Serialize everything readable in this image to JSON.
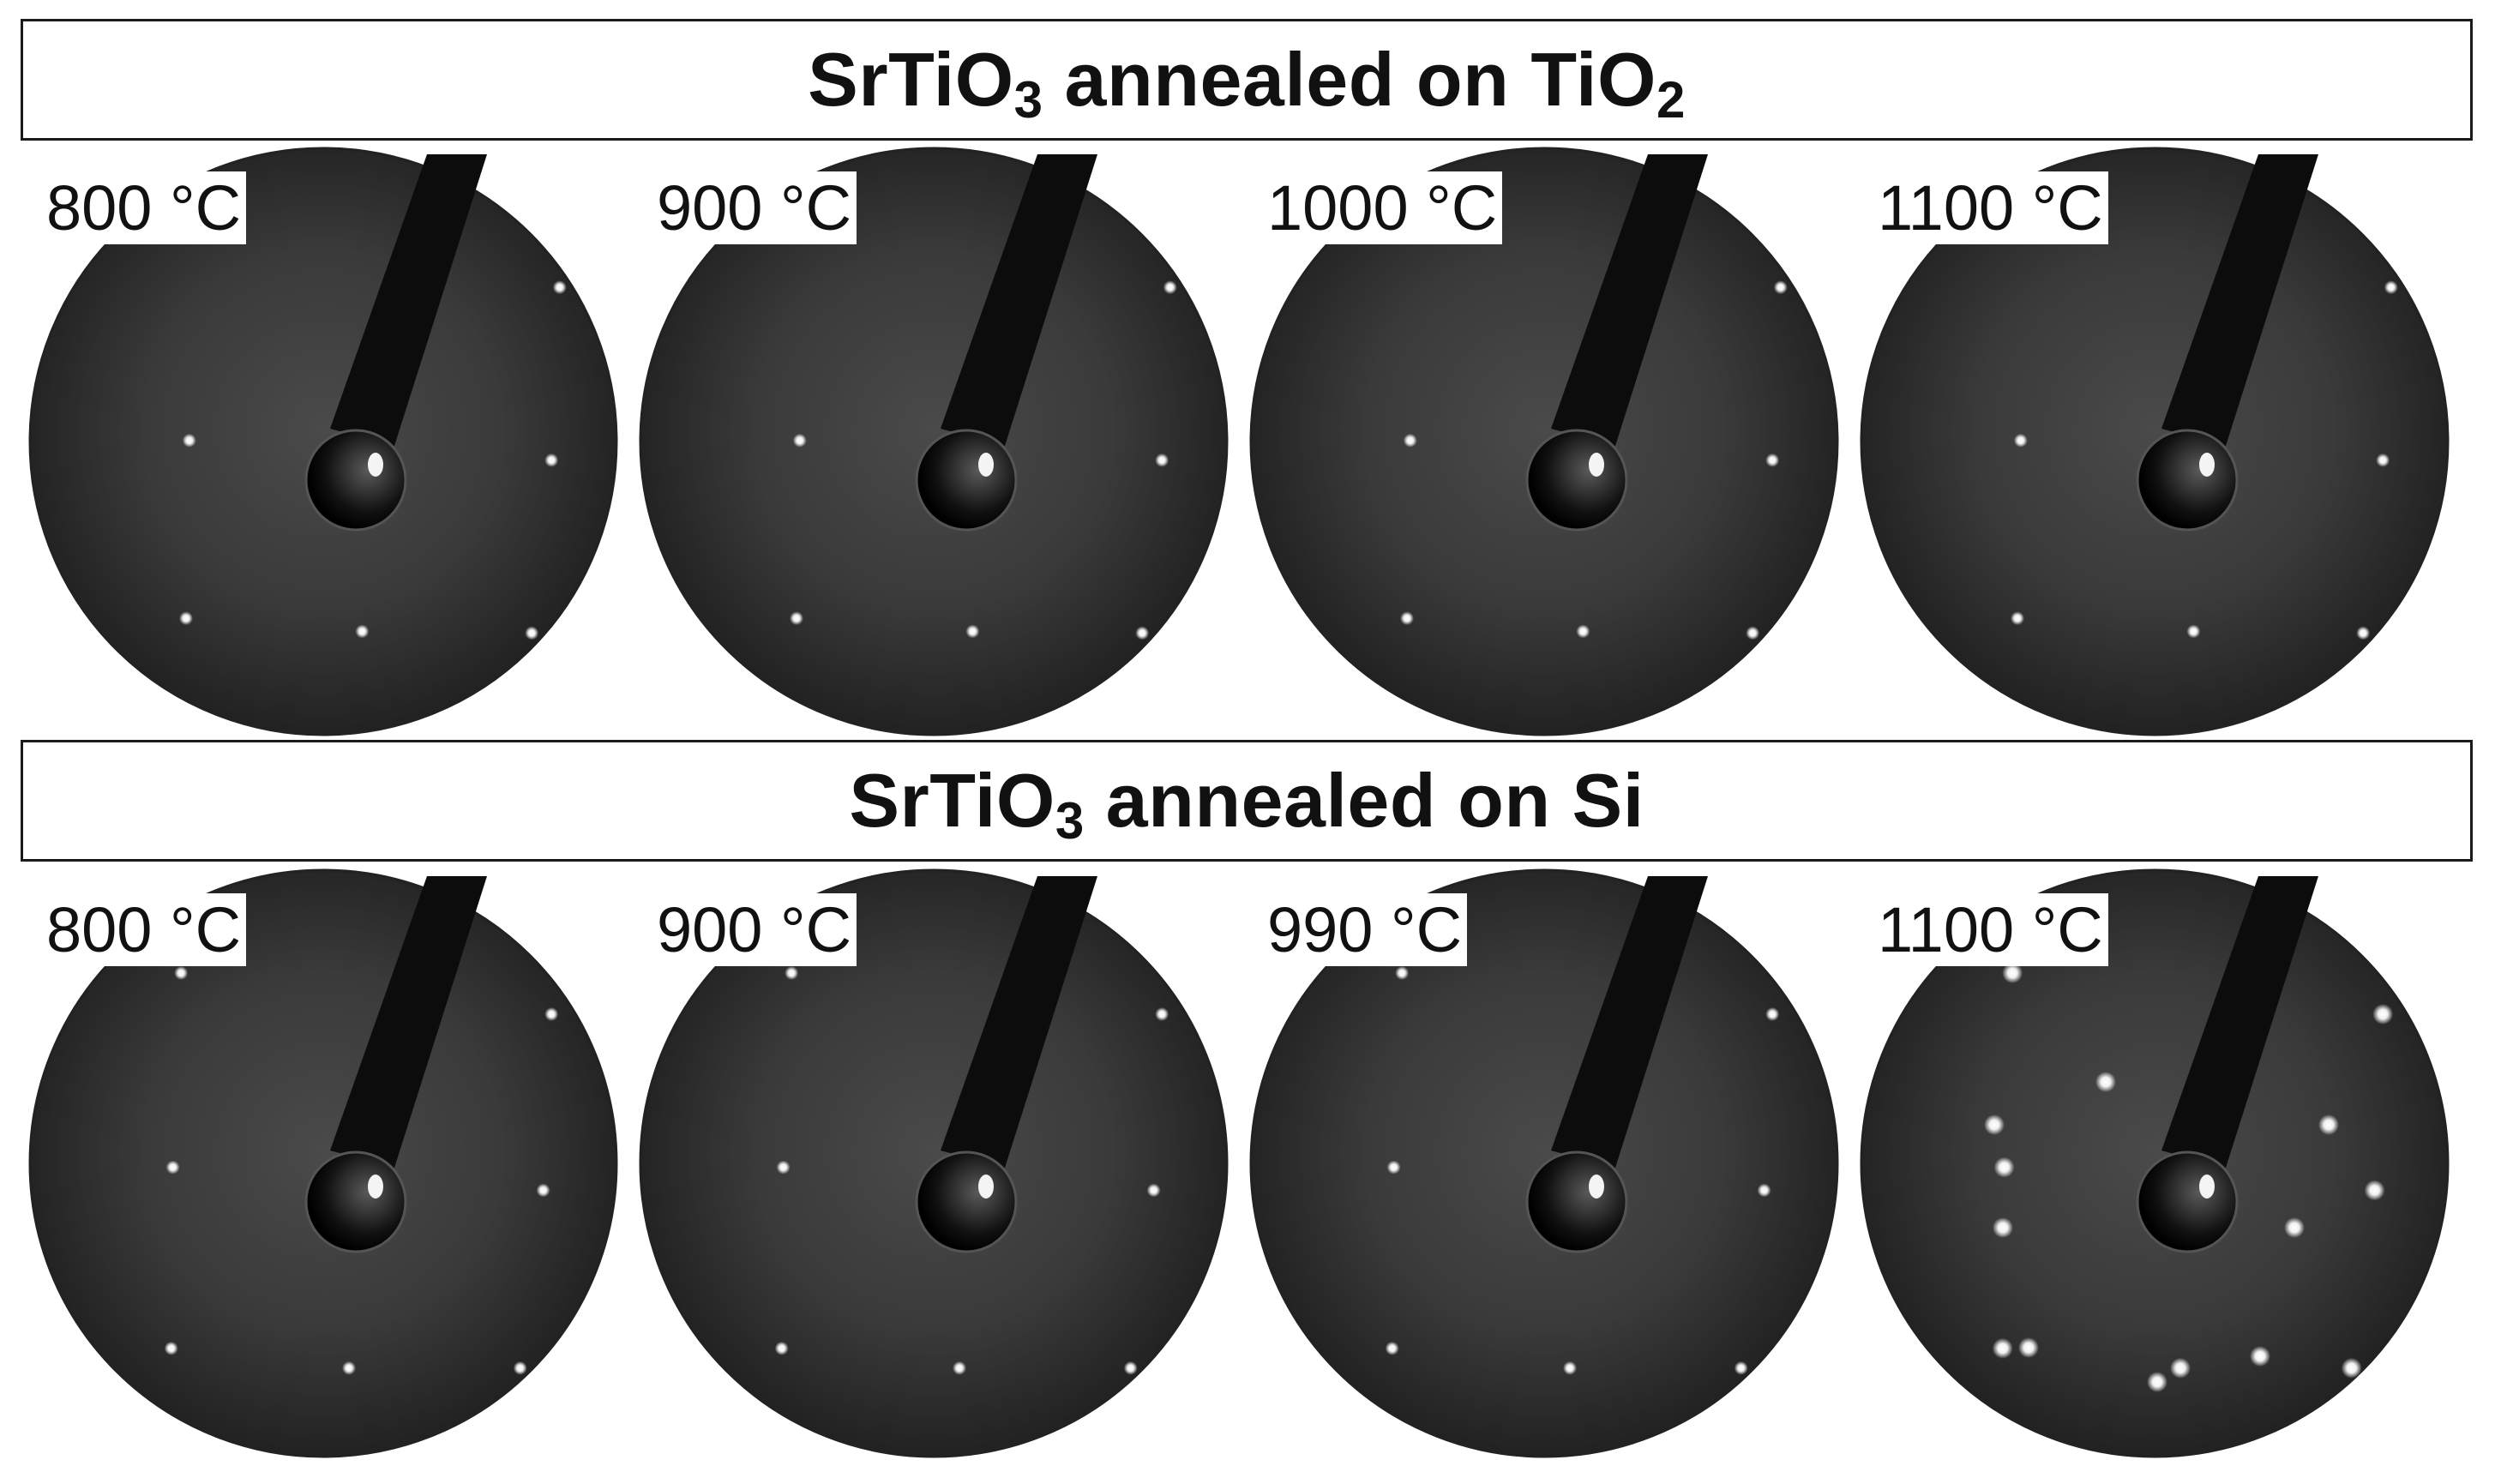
{
  "rows": [
    {
      "title_main": "SrTiO",
      "title_sub1": "3",
      "title_rest": " annealed on TiO",
      "title_sub2": "2",
      "panels": [
        {
          "temperature": "800 °C"
        },
        {
          "temperature": "900 °C"
        },
        {
          "temperature": "1000 °C"
        },
        {
          "temperature": "1100 °C"
        }
      ]
    },
    {
      "title_main": "SrTiO",
      "title_sub1": "3",
      "title_rest": " annealed on Si",
      "title_sub2": "",
      "panels": [
        {
          "temperature": "800 °C"
        },
        {
          "temperature": "900 °C"
        },
        {
          "temperature": "990 °C"
        },
        {
          "temperature": "1100 °C"
        }
      ]
    }
  ]
}
